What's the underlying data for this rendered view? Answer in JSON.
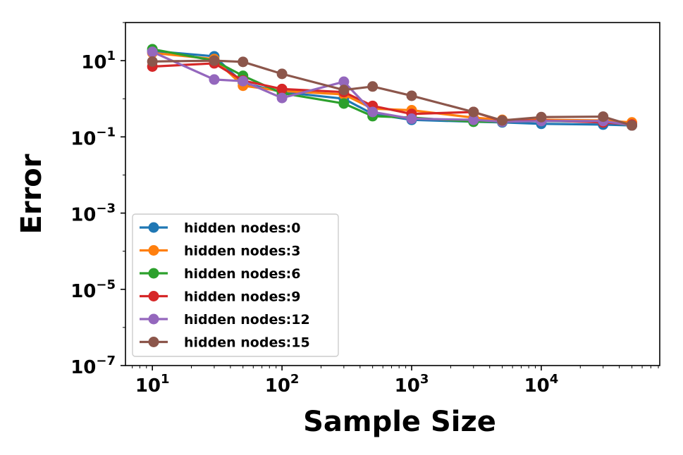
{
  "chart_data": {
    "type": "line",
    "title": "",
    "xlabel": "Sample Size",
    "ylabel": "Error",
    "xscale": "log",
    "yscale": "log",
    "xlim": [
      6.2,
      82000
    ],
    "ylim": [
      1e-07,
      100
    ],
    "xticks": [
      {
        "value": 10,
        "base": "10",
        "exp": "1"
      },
      {
        "value": 100,
        "base": "10",
        "exp": "2"
      },
      {
        "value": 1000,
        "base": "10",
        "exp": "3"
      },
      {
        "value": 10000,
        "base": "10",
        "exp": "4"
      }
    ],
    "yticks": [
      {
        "value": 10,
        "base": "10",
        "exp": "1"
      },
      {
        "value": 0.1,
        "base": "10",
        "exp": "−1"
      },
      {
        "value": 0.001,
        "base": "10",
        "exp": "−3"
      },
      {
        "value": 1e-05,
        "base": "10",
        "exp": "−5"
      },
      {
        "value": 1e-07,
        "base": "10",
        "exp": "−7"
      }
    ],
    "grid": false,
    "legend_position": "center-left",
    "x": [
      10,
      30,
      50,
      100,
      300,
      500,
      1000,
      3000,
      5000,
      10000,
      30000,
      50000
    ],
    "series": [
      {
        "name": "hidden nodes:0",
        "color": "#1f77b4",
        "values": [
          18,
          13,
          2.6,
          1.5,
          1.0,
          0.4,
          0.28,
          0.25,
          0.24,
          0.22,
          0.21,
          0.2
        ]
      },
      {
        "name": "hidden nodes:3",
        "color": "#ff7f0e",
        "values": [
          16,
          11,
          2.2,
          1.6,
          1.3,
          0.55,
          0.5,
          0.32,
          0.28,
          0.28,
          0.27,
          0.24
        ]
      },
      {
        "name": "hidden nodes:6",
        "color": "#2ca02c",
        "values": [
          20,
          10,
          4.0,
          1.4,
          0.75,
          0.35,
          0.32,
          0.25,
          0.25,
          0.26,
          0.25,
          0.2
        ]
      },
      {
        "name": "hidden nodes:9",
        "color": "#d62728",
        "values": [
          7,
          8.5,
          3.0,
          1.8,
          1.5,
          0.65,
          0.4,
          0.45,
          0.26,
          0.27,
          0.24,
          0.21
        ]
      },
      {
        "name": "hidden nodes:12",
        "color": "#9467bd",
        "values": [
          17,
          3.2,
          2.9,
          1.05,
          2.8,
          0.45,
          0.3,
          0.28,
          0.25,
          0.26,
          0.26,
          0.2
        ]
      },
      {
        "name": "hidden nodes:15",
        "color": "#8c564b",
        "values": [
          9.5,
          10,
          9.3,
          4.5,
          1.7,
          2.1,
          1.2,
          0.45,
          0.27,
          0.33,
          0.34,
          0.2
        ]
      }
    ]
  }
}
